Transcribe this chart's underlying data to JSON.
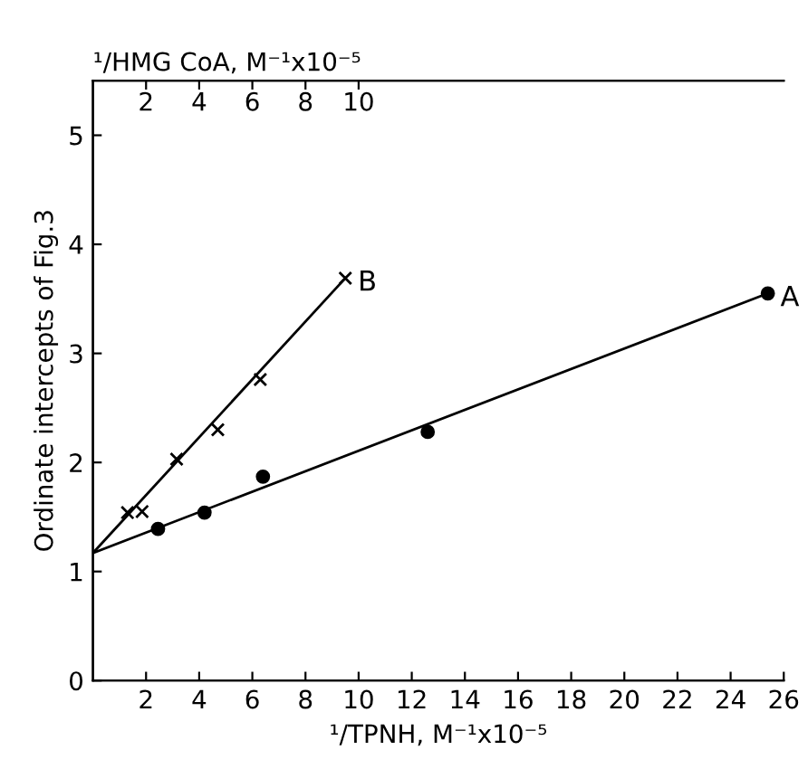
{
  "chart_data": {
    "type": "scatter",
    "xlabel": "¹/TPNH, M⁻¹x10⁻⁵",
    "x2label": "¹/HMG CoA, M⁻¹x10⁻⁵",
    "ylabel": "Ordinate intercepts of Fig.3",
    "xlim": [
      0,
      26
    ],
    "xticks": [
      2,
      4,
      6,
      8,
      10,
      12,
      14,
      16,
      18,
      20,
      22,
      24,
      26
    ],
    "x2lim": [
      0,
      26
    ],
    "x2ticks": [
      2,
      4,
      6,
      8,
      10
    ],
    "ylim": [
      0,
      5.5
    ],
    "yticks": [
      0,
      1,
      2,
      3,
      4,
      5
    ],
    "grid": false,
    "legend": false,
    "series": [
      {
        "name": "A",
        "color": "#000000",
        "marker": "circle",
        "x": [
          2.45,
          4.2,
          6.4,
          12.6,
          25.4
        ],
        "values": [
          1.39,
          1.54,
          1.87,
          2.28,
          3.55
        ]
      },
      {
        "name": "B",
        "color": "#000000",
        "marker": "cross",
        "x": [
          1.3,
          1.85,
          3.15,
          4.7,
          6.3,
          9.5
        ],
        "values": [
          1.54,
          1.55,
          2.03,
          2.3,
          2.76,
          3.69
        ]
      },
      {
        "type": "line",
        "color": "#000000",
        "marker": "none",
        "line_style": "solid",
        "x": [
          0,
          25.4
        ],
        "values": [
          1.17,
          3.55
        ]
      },
      {
        "type": "line",
        "color": "#000000",
        "marker": "none",
        "line_style": "solid",
        "x": [
          0,
          9.5
        ],
        "values": [
          1.17,
          3.69
        ]
      }
    ]
  }
}
